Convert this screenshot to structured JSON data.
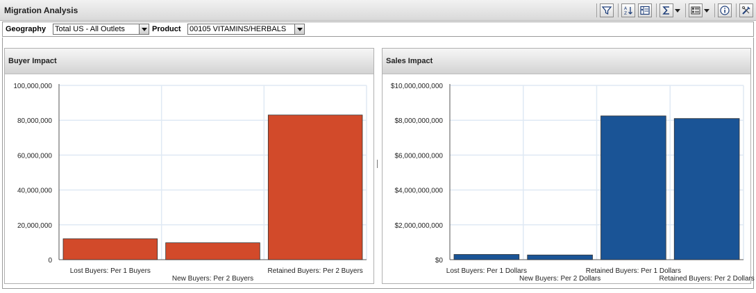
{
  "window": {
    "title": "Migration Analysis"
  },
  "toolbar": {
    "buttons": [
      {
        "icon": "filter-icon"
      },
      {
        "icon": "sort-icon"
      },
      {
        "icon": "column-select-icon"
      },
      {
        "icon": "sum-icon",
        "dropdown": true
      },
      {
        "icon": "layout-grid-icon",
        "dropdown": true
      },
      {
        "icon": "info-icon"
      },
      {
        "icon": "tools-icon"
      }
    ]
  },
  "filters": {
    "geography": {
      "label": "Geography",
      "value": "Total US - All Outlets"
    },
    "product": {
      "label": "Product",
      "value": "00105 VITAMINS/HERBALS"
    }
  },
  "panels": [
    {
      "title": "Buyer Impact"
    },
    {
      "title": "Sales Impact"
    }
  ],
  "chart_data": [
    {
      "type": "bar",
      "title": "Buyer Impact",
      "categories": [
        "Lost Buyers: Per 1 Buyers",
        "New Buyers: Per 2 Buyers",
        "Retained Buyers: Per 2 Buyers"
      ],
      "values": [
        12000000,
        9700000,
        83000000
      ],
      "ylim": [
        0,
        100000000
      ],
      "yticks": [
        "0",
        "20,000,000",
        "40,000,000",
        "60,000,000",
        "80,000,000",
        "100,000,000"
      ],
      "color": "#d24a2a",
      "grid": true,
      "legend": "none"
    },
    {
      "type": "bar",
      "title": "Sales Impact",
      "categories": [
        "Lost Buyers: Per 1 Dollars",
        "New Buyers: Per 2 Dollars",
        "Retained Buyers: Per 1 Dollars",
        "Retained Buyers: Per 2 Dollars"
      ],
      "values": [
        300000000,
        270000000,
        8250000000,
        8100000000
      ],
      "ylim": [
        0,
        10000000000
      ],
      "yticks": [
        "$0",
        "$2,000,000,000",
        "$4,000,000,000",
        "$6,000,000,000",
        "$8,000,000,000",
        "$10,000,000,000"
      ],
      "color": "#1a5496",
      "grid": true,
      "legend": "none"
    }
  ]
}
